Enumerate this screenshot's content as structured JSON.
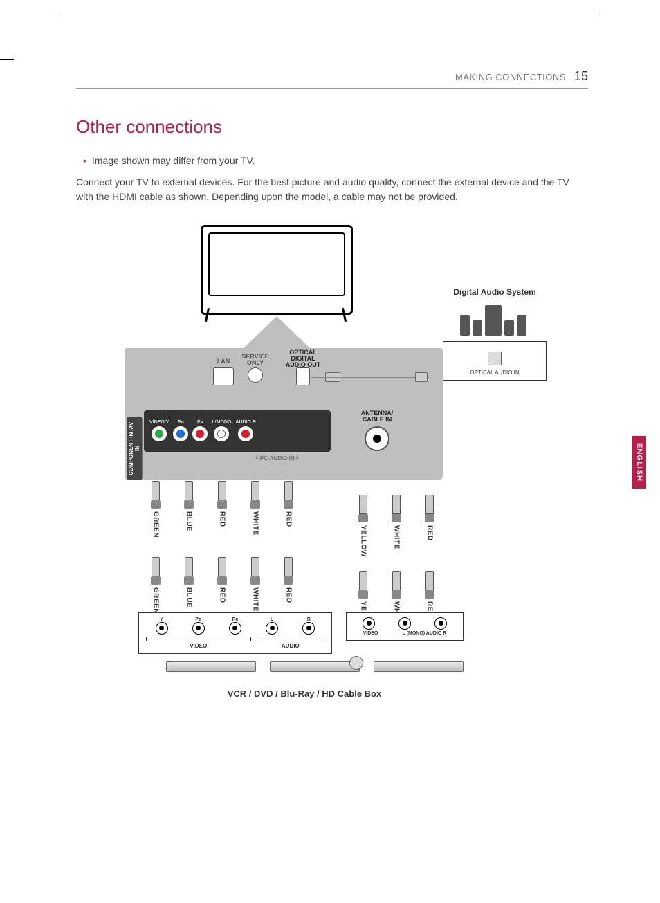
{
  "header": {
    "section": "MAKING CONNECTIONS",
    "page_number": "15"
  },
  "title": "Other connections",
  "bullet": "Image shown may differ from your TV.",
  "body": "Connect your TV to external devices. For the best picture and audio quality, connect the external device and the TV with the HDMI cable as shown. Depending upon the model, a cable may not be provided.",
  "language_tab": "ENGLISH",
  "colors": {
    "accent": "#b51f4a",
    "panel_bg": "#bfbfbf",
    "text": "#444444",
    "header_text": "#777777"
  },
  "panel": {
    "lan": "LAN",
    "service_only": "SERVICE ONLY",
    "optical_out": "OPTICAL DIGITAL AUDIO OUT",
    "side_label": "COMPONENT IN /AV IN",
    "rca_ports": [
      {
        "label": "VIDEO/Y",
        "color": "#2aa84a"
      },
      {
        "label": "Pʙ",
        "color": "#1e6fd9"
      },
      {
        "label": "Pʀ",
        "color": "#d81e2c"
      },
      {
        "label": "L/MONO",
        "color": "#ffffff"
      },
      {
        "label": "AUDIO R",
        "color": "#d81e2c"
      }
    ],
    "pc_audio": "PC-AUDIO IN",
    "antenna": "ANTENNA/ CABLE IN"
  },
  "digital_audio": {
    "title": "Digital Audio System",
    "port_label": "OPTICAL AUDIO IN"
  },
  "cables_component": {
    "top": [
      "GREEN",
      "BLUE",
      "RED",
      "WHITE",
      "RED"
    ],
    "bottom": [
      "GREEN",
      "BLUE",
      "RED",
      "WHITE",
      "RED"
    ]
  },
  "cables_av": {
    "top": [
      "YELLOW",
      "WHITE",
      "RED"
    ],
    "bottom": [
      "YELLOW",
      "WHITE",
      "RED"
    ]
  },
  "device_component": {
    "ports": [
      "Y",
      "Pʙ",
      "Pʀ",
      "L",
      "R"
    ],
    "video_label": "VIDEO",
    "audio_label": "AUDIO"
  },
  "device_av": {
    "video_label": "VIDEO",
    "audio_lr": "L (MONO) AUDIO R"
  },
  "caption": "VCR / DVD / Blu-Ray / HD Cable Box"
}
